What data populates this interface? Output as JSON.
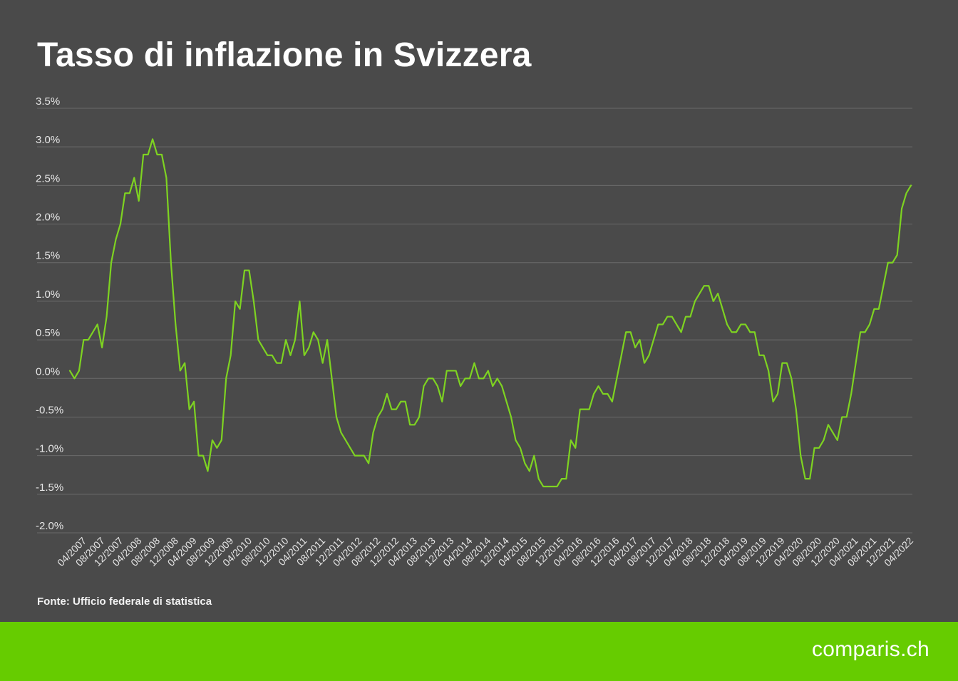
{
  "colors": {
    "background": "#4a4a4a",
    "line": "#7ed321",
    "footer": "#66cc00",
    "text": "#ffffff",
    "grid": "#6a6a6a"
  },
  "footer": {
    "source": "Fonte: Ufficio federale di statistica",
    "brand": "comparis.ch"
  },
  "chart_data": {
    "type": "line",
    "title": "Tasso di inflazione in Svizzera",
    "xlabel": "",
    "ylabel": "",
    "ylim": [
      -2.0,
      3.5
    ],
    "grid": true,
    "legend": "none",
    "y_ticks": [
      "3.5%",
      "3.0%",
      "2.5%",
      "2.0%",
      "1.5%",
      "1.0%",
      "0.5%",
      "0.0%",
      "-0.5%",
      "-1.0%",
      "-1.5%",
      "-2.0%"
    ],
    "x_ticks": [
      "04/2007",
      "08/2007",
      "12/2007",
      "04/2008",
      "08/2008",
      "12/2008",
      "04/2009",
      "08/2009",
      "12/2009",
      "04/2010",
      "08/2010",
      "12/2010",
      "04/2011",
      "08/2011",
      "12/2011",
      "04/2012",
      "08/2012",
      "12/2012",
      "04/2013",
      "08/2013",
      "12/2013",
      "04/2014",
      "08/2014",
      "12/2014",
      "04/2015",
      "08/2015",
      "12/2015",
      "04/2016",
      "08/2016",
      "12/2016",
      "04/2017",
      "08/2017",
      "12/2017",
      "04/2018",
      "08/2018",
      "12/2018",
      "04/2019",
      "08/2019",
      "12/2019",
      "04/2020",
      "08/2020",
      "12/2020",
      "04/2021",
      "08/2021",
      "12/2021",
      "04/2022"
    ],
    "x_start": "04/2007",
    "x_end": "04/2022",
    "series": [
      {
        "values": [
          0.1,
          0.0,
          0.1,
          0.5,
          0.5,
          0.6,
          0.7,
          0.4,
          0.8,
          1.5,
          1.8,
          2.0,
          2.4,
          2.4,
          2.6,
          2.3,
          2.9,
          2.9,
          3.1,
          2.9,
          2.9,
          2.6,
          1.5,
          0.7,
          0.1,
          0.2,
          -0.4,
          -0.3,
          -1.0,
          -1.0,
          -1.2,
          -0.8,
          -0.9,
          -0.8,
          0.0,
          0.3,
          1.0,
          0.9,
          1.4,
          1.4,
          1.0,
          0.5,
          0.4,
          0.3,
          0.3,
          0.2,
          0.2,
          0.5,
          0.3,
          0.5,
          1.0,
          0.3,
          0.4,
          0.6,
          0.5,
          0.2,
          0.5,
          0.0,
          -0.5,
          -0.7,
          -0.8,
          -0.9,
          -1.0,
          -1.0,
          -1.0,
          -1.1,
          -0.7,
          -0.5,
          -0.4,
          -0.2,
          -0.4,
          -0.4,
          -0.3,
          -0.3,
          -0.6,
          -0.6,
          -0.5,
          -0.1,
          0.0,
          0.0,
          -0.1,
          -0.3,
          0.1,
          0.1,
          0.1,
          -0.1,
          0.0,
          0.0,
          0.2,
          0.0,
          0.0,
          0.1,
          -0.1,
          0.0,
          -0.1,
          -0.3,
          -0.5,
          -0.8,
          -0.9,
          -1.1,
          -1.2,
          -1.0,
          -1.3,
          -1.4,
          -1.4,
          -1.4,
          -1.4,
          -1.3,
          -1.3,
          -0.8,
          -0.9,
          -0.4,
          -0.4,
          -0.4,
          -0.2,
          -0.1,
          -0.2,
          -0.2,
          -0.3,
          0.0,
          0.3,
          0.6,
          0.6,
          0.4,
          0.5,
          0.2,
          0.3,
          0.5,
          0.7,
          0.7,
          0.8,
          0.8,
          0.7,
          0.6,
          0.8,
          0.8,
          1.0,
          1.1,
          1.2,
          1.2,
          1.0,
          1.1,
          0.9,
          0.7,
          0.6,
          0.6,
          0.7,
          0.7,
          0.6,
          0.6,
          0.3,
          0.3,
          0.1,
          -0.3,
          -0.2,
          0.2,
          0.2,
          0.0,
          -0.4,
          -1.0,
          -1.3,
          -1.3,
          -0.9,
          -0.9,
          -0.8,
          -0.6,
          -0.7,
          -0.8,
          -0.5,
          -0.5,
          -0.2,
          0.2,
          0.6,
          0.6,
          0.7,
          0.9,
          0.9,
          1.2,
          1.5,
          1.5,
          1.6,
          2.2,
          2.4,
          2.5
        ]
      }
    ]
  }
}
